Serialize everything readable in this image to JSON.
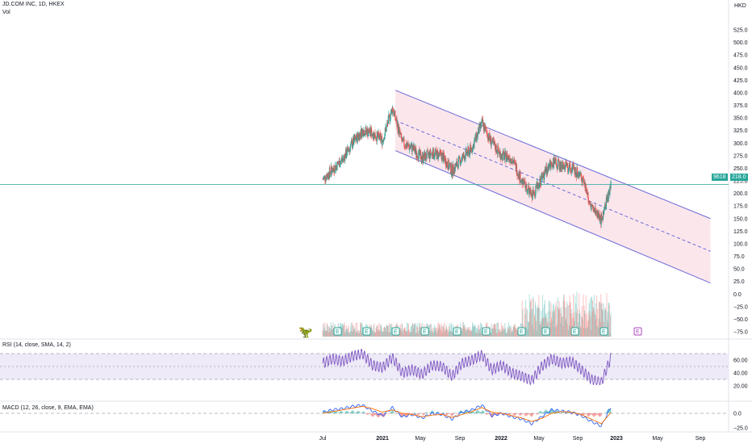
{
  "header": {
    "symbol_line": "JD.COM INC, 1D, HKEX",
    "volume_label": "Vol",
    "rsi_label": "RSI (14, close, SMA, 14, 2)",
    "macd_label": "MACD (12, 26, close, 9, EMA, EMA)",
    "currency": "HKD",
    "symbol_tag": "9618",
    "last_price": "218.0"
  },
  "colors": {
    "up": "#26a69a",
    "down": "#ef5350",
    "channel_fill": "#fbe3ea",
    "channel_line": "#6b6bd8",
    "rsi": "#7e57c2",
    "rsi_band": "#eeeaf8",
    "macd": "#2962ff",
    "signal": "#ff6d00",
    "earnings": "#26a69a"
  },
  "chart_data": {
    "type": "line",
    "x_ticks": [
      "Jul",
      "2021",
      "May",
      "Sep",
      "2022",
      "May",
      "Sep",
      "2023",
      "May",
      "Sep"
    ],
    "price_axis_ticks": [
      "525.0",
      "500.0",
      "475.0",
      "450.0",
      "425.0",
      "400.0",
      "375.0",
      "350.0",
      "325.0",
      "300.0",
      "275.0",
      "250.0",
      "225.0",
      "200.0",
      "175.0",
      "150.0",
      "125.0",
      "100.0",
      "75.0",
      "50.0",
      "25.0",
      "0.0",
      "−25.0",
      "−50.0",
      "−75.0"
    ],
    "rsi_axis_ticks": [
      "60.00",
      "40.00",
      "20.00"
    ],
    "macd_axis_ticks": [
      "0.0",
      "−25.0"
    ],
    "price": {
      "x": [
        "2020-07",
        "2020-08",
        "2020-09",
        "2020-10",
        "2020-11",
        "2020-12",
        "2021-01",
        "2021-02",
        "2021-03",
        "2021-04",
        "2021-05",
        "2021-06",
        "2021-07",
        "2021-08",
        "2021-09",
        "2021-10",
        "2021-11",
        "2021-12",
        "2022-01",
        "2022-02",
        "2022-03",
        "2022-04",
        "2022-05",
        "2022-06",
        "2022-07",
        "2022-08",
        "2022-09",
        "2022-10",
        "2022-11",
        "2022-12"
      ],
      "close": [
        228,
        248,
        268,
        300,
        325,
        320,
        305,
        370,
        300,
        290,
        270,
        280,
        275,
        245,
        270,
        290,
        340,
        300,
        275,
        270,
        225,
        195,
        230,
        262,
        255,
        250,
        235,
        175,
        145,
        218
      ]
    },
    "channel": {
      "upper": [
        [
          "2021-02-10",
          405
        ],
        [
          "2023-09-30",
          150
        ]
      ],
      "middle": [
        [
          "2021-02-10",
          345
        ],
        [
          "2023-09-30",
          85
        ]
      ],
      "lower": [
        [
          "2021-02-10",
          285
        ],
        [
          "2023-09-30",
          22
        ]
      ]
    },
    "volume_scale_note": "",
    "rsi": {
      "overbought": 70,
      "oversold": 30,
      "midline": 50,
      "values": [
        55,
        62,
        58,
        66,
        70,
        52,
        48,
        64,
        40,
        45,
        38,
        52,
        50,
        35,
        55,
        60,
        68,
        45,
        52,
        40,
        35,
        28,
        50,
        62,
        55,
        58,
        45,
        30,
        25,
        65
      ]
    },
    "macd": {
      "macd": [
        2,
        6,
        8,
        12,
        14,
        4,
        -4,
        10,
        -6,
        -2,
        -8,
        0,
        -2,
        -10,
        2,
        6,
        14,
        -4,
        0,
        -6,
        -10,
        -18,
        -6,
        6,
        4,
        2,
        -4,
        -14,
        -22,
        12
      ],
      "signal": [
        0,
        3,
        6,
        9,
        12,
        8,
        2,
        6,
        0,
        -2,
        -6,
        -3,
        -2,
        -7,
        -2,
        3,
        10,
        2,
        0,
        -4,
        -8,
        -14,
        -9,
        0,
        3,
        2,
        -2,
        -10,
        -18,
        2
      ]
    },
    "earnings_markers": [
      "E",
      "E",
      "E",
      "E",
      "E",
      "E",
      "E",
      "E",
      "E",
      "E"
    ],
    "future_earnings": "E"
  }
}
